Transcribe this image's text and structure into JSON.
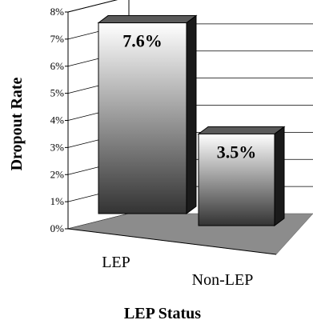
{
  "chart_data": {
    "type": "bar",
    "categories": [
      "LEP",
      "Non-LEP"
    ],
    "values": [
      7.6,
      3.5
    ],
    "data_labels": [
      "7.6%",
      "3.5%"
    ],
    "xlabel": "LEP Status",
    "ylabel": "Dropout Rate",
    "ylim": [
      0,
      8
    ],
    "yticks": [
      "0%",
      "1%",
      "2%",
      "3%",
      "4%",
      "5%",
      "6%",
      "7%",
      "8%"
    ],
    "grid": true,
    "style": "3d",
    "colors": {
      "floor": "#8c8c8c",
      "bar_light": "#ffffff",
      "bar_dark": "#333333",
      "bar_side": "#1a1a1a",
      "bar_top": "#5a5a5a"
    }
  }
}
